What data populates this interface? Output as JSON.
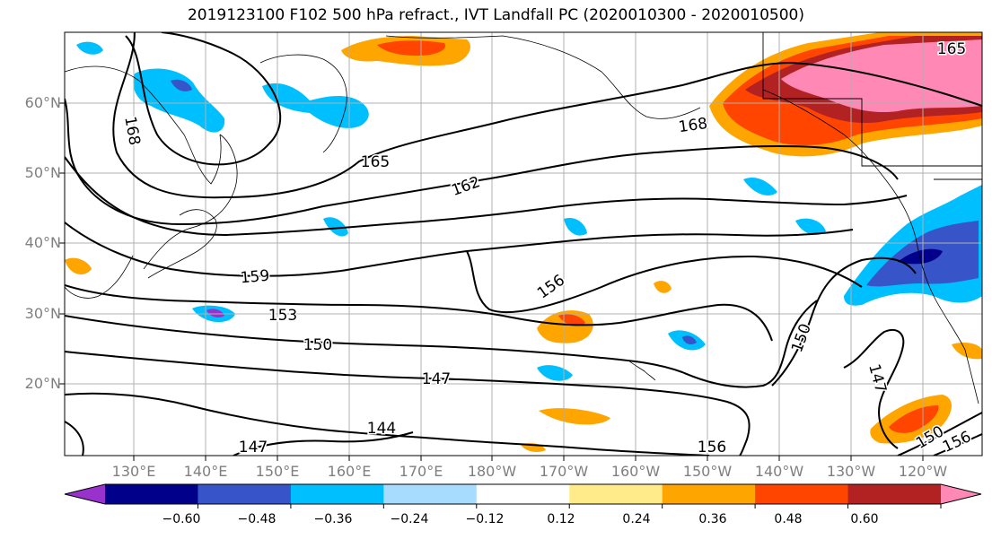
{
  "title": "2019123100 F102 500 hPa refract., IVT Landfall PC (2020010300 - 2020010500)",
  "lat_labels": [
    "60°N",
    "50°N",
    "40°N",
    "30°N",
    "20°N"
  ],
  "lon_labels": [
    "130°E",
    "140°E",
    "150°E",
    "160°E",
    "170°E",
    "180°W",
    "170°W",
    "160°W",
    "150°W",
    "140°W",
    "130°W",
    "120°W"
  ],
  "contour_labels": [
    "168",
    "168",
    "165",
    "165",
    "162",
    "159",
    "156",
    "153",
    "150",
    "150",
    "147",
    "147",
    "147",
    "144",
    "156",
    "150",
    "156"
  ],
  "colorbar": {
    "colors": [
      "#9932cc",
      "#00008b",
      "#3755c8",
      "#00bfff",
      "#a8dcff",
      "#ffffff",
      "#ffeb8a",
      "#ffa500",
      "#ff4500",
      "#b22222",
      "#ff88b4"
    ],
    "tick_labels": [
      "−0.60",
      "−0.48",
      "−0.36",
      "−0.24",
      "−0.12",
      "0.12",
      "0.24",
      "0.36",
      "0.48",
      "0.60"
    ]
  }
}
